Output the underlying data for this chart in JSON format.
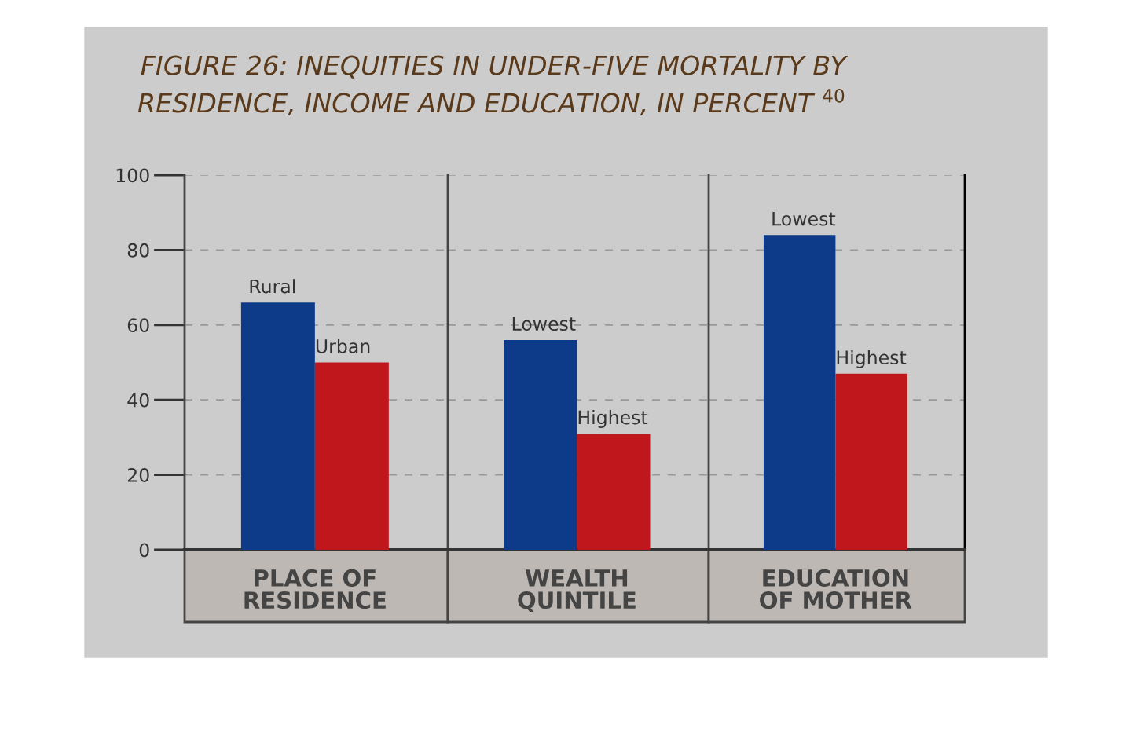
{
  "chart_data": [
    {
      "type": "bar",
      "title": "FIGURE 26: INEQUITIES IN UNDER-FIVE MORTALITY BY\nRESIDENCE, INCOME AND EDUCATION, IN PERCENT $^{40}$",
      "categories": [
        "PLACE OF\nRESIDENCE"
      ],
      "series": [
        {
          "name": "Rural",
          "color": "#0d3b8a",
          "values": [
            66
          ]
        },
        {
          "name": "Urban",
          "color": "#c0171c",
          "values": [
            50
          ]
        }
      ],
      "ylim": [
        0,
        100
      ],
      "yticks": [
        0,
        20,
        40,
        60,
        80,
        100
      ],
      "grid": "y"
    },
    {
      "type": "bar",
      "categories": [
        "WEALTH\nQUINTILE"
      ],
      "series": [
        {
          "name": "Lowest",
          "color": "#0d3b8a",
          "values": [
            56
          ]
        },
        {
          "name": "Highest",
          "color": "#c0171c",
          "values": [
            31
          ]
        }
      ],
      "ylim": [
        0,
        100
      ],
      "yticks": [
        0,
        20,
        40,
        60,
        80,
        100
      ],
      "grid": "y",
      "tick_labels": "x"
    },
    {
      "type": "bar",
      "categories": [
        "EDUCATION\nOF MOTHER"
      ],
      "series": [
        {
          "name": "Lowest",
          "color": "#0d3b8a",
          "values": [
            84
          ]
        },
        {
          "name": "Highest",
          "color": "#c0171c",
          "values": [
            47
          ]
        }
      ],
      "ylim": [
        0,
        100
      ],
      "yticks": [
        0,
        20,
        40,
        60,
        80,
        100
      ],
      "grid": "y",
      "tick_labels": "x"
    }
  ]
}
